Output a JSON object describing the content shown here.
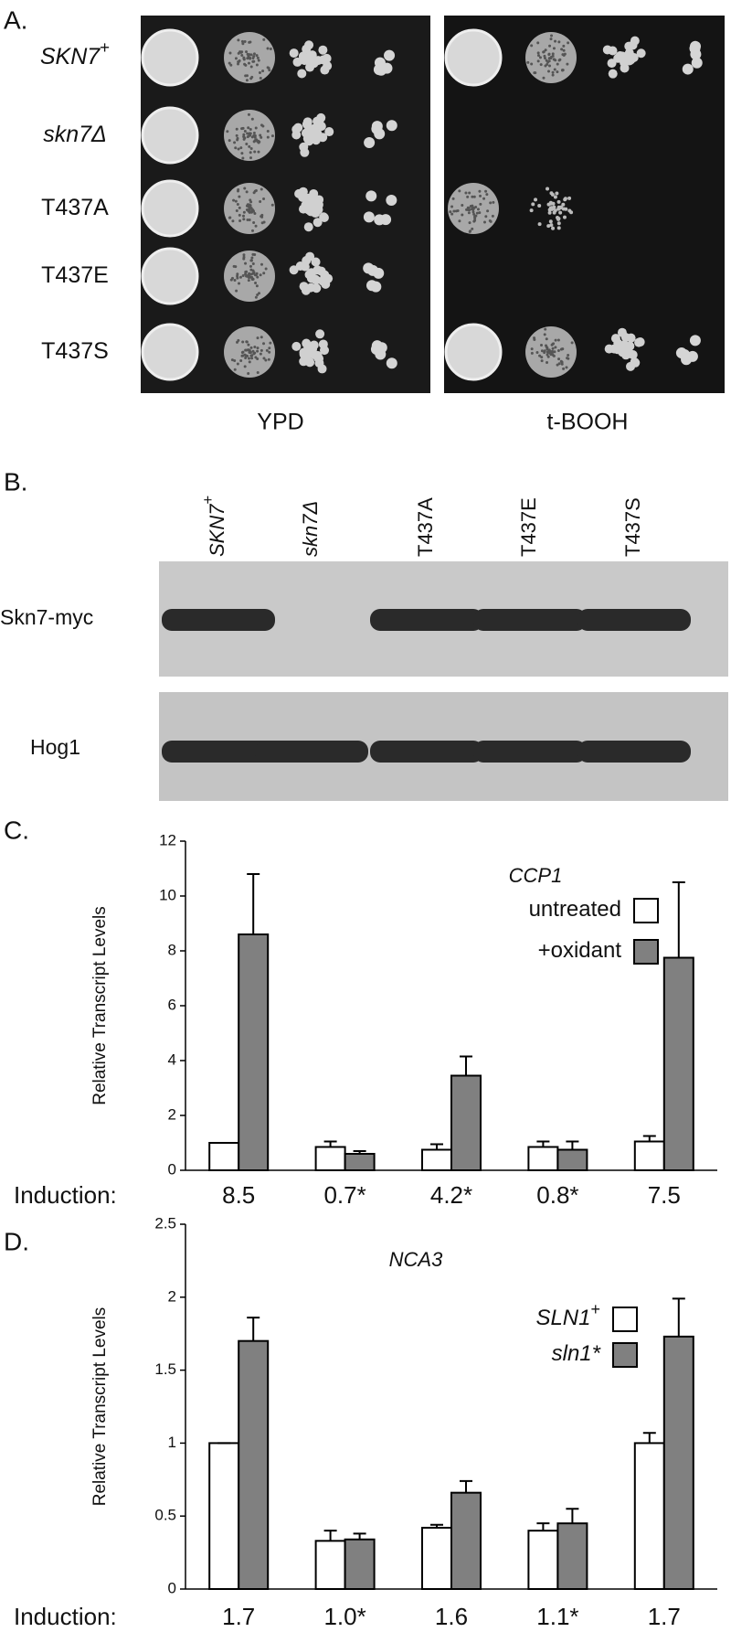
{
  "panel_a": {
    "label": "A.",
    "rows": [
      {
        "text": "SKN7",
        "sup": "+",
        "italic": true
      },
      {
        "text": "skn7Δ",
        "italic": true
      },
      {
        "text": "T437A"
      },
      {
        "text": "T437E"
      },
      {
        "text": "T437S"
      }
    ],
    "conditions": [
      "YPD",
      "t-BOOH"
    ]
  },
  "panel_b": {
    "label": "B.",
    "lanes": [
      {
        "text": "SKN7",
        "sup": "+",
        "italic": true
      },
      {
        "text": "skn7Δ",
        "italic": true
      },
      {
        "text": "T437A"
      },
      {
        "text": "T437E"
      },
      {
        "text": "T437S"
      }
    ],
    "bands": [
      "Skn7-myc",
      "Hog1"
    ]
  },
  "chart_data": [
    {
      "type": "bar",
      "label": "C.",
      "title": "CCP1",
      "title_italic": true,
      "ylabel": "Relative Transcript Levels",
      "ylim": [
        0,
        12
      ],
      "yticks": [
        0,
        2,
        4,
        6,
        8,
        10,
        12
      ],
      "series": [
        {
          "name": "untreated",
          "color": "#ffffff",
          "values": [
            1.0,
            0.85,
            0.75,
            0.85,
            1.05
          ],
          "errors": [
            0,
            0.2,
            0.2,
            0.2,
            0.2
          ]
        },
        {
          "name": "+oxidant",
          "color": "#808080",
          "values": [
            8.6,
            0.6,
            3.45,
            0.75,
            7.75
          ],
          "errors": [
            2.2,
            0.1,
            0.7,
            0.3,
            2.75
          ]
        }
      ],
      "induction_label": "Induction:",
      "induction": [
        "8.5",
        "0.7*",
        "4.2*",
        "0.8*",
        "7.5"
      ]
    },
    {
      "type": "bar",
      "label": "D.",
      "title": "NCA3",
      "title_italic": true,
      "ylabel": "Relative Transcript Levels",
      "ylim": [
        0,
        2.5
      ],
      "yticks": [
        0,
        0.5,
        1,
        1.5,
        2,
        2.5
      ],
      "series": [
        {
          "name": "SLN1",
          "sup": "+",
          "italic": true,
          "color": "#ffffff",
          "values": [
            1.0,
            0.33,
            0.42,
            0.4,
            1.0
          ],
          "errors": [
            0,
            0.07,
            0.02,
            0.05,
            0.07
          ]
        },
        {
          "name": "sln1*",
          "italic": true,
          "color": "#808080",
          "values": [
            1.7,
            0.34,
            0.66,
            0.45,
            1.73
          ],
          "errors": [
            0.16,
            0.04,
            0.08,
            0.1,
            0.26
          ]
        }
      ],
      "induction_label": "Induction:",
      "induction": [
        "1.7",
        "1.0*",
        "1.6",
        "1.1*",
        "1.7"
      ]
    }
  ]
}
